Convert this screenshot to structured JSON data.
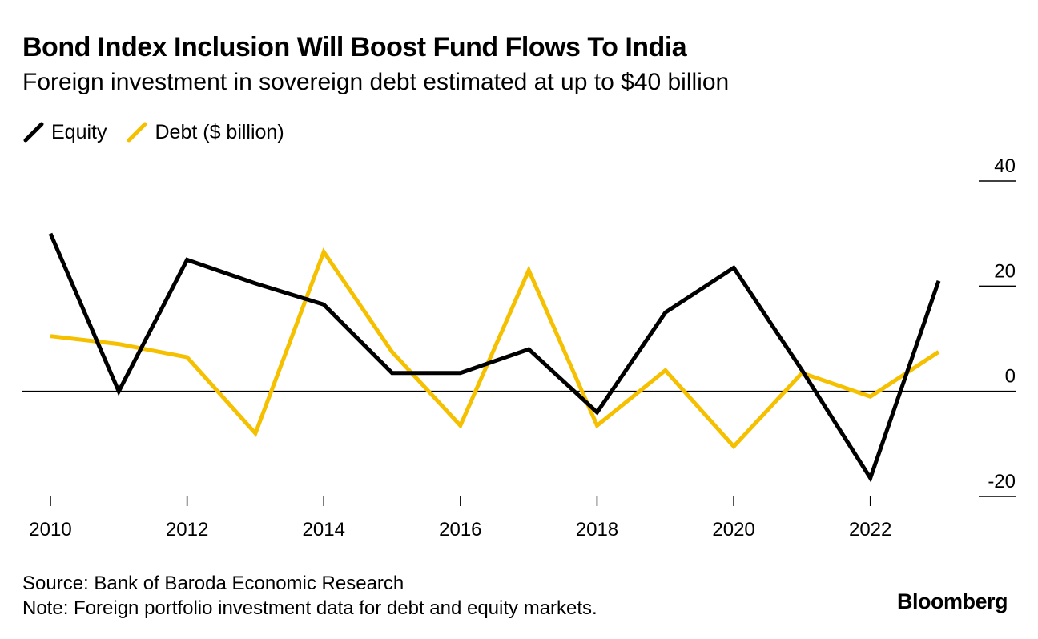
{
  "chart_data": {
    "type": "line",
    "title": "Bond Index Inclusion Will Boost Fund Flows To India",
    "subtitle": "Foreign investment in sovereign debt estimated at up to $40 billion",
    "x": [
      2010,
      2011,
      2012,
      2013,
      2014,
      2015,
      2016,
      2017,
      2018,
      2019,
      2020,
      2021,
      2022,
      2023
    ],
    "series": [
      {
        "name": "Equity",
        "color": "#000000",
        "values": [
          30,
          0,
          25,
          20.5,
          16.5,
          3.5,
          3.5,
          8,
          -4,
          15,
          23.5,
          4,
          -16.5,
          21
        ]
      },
      {
        "name": "Debt ($ billion)",
        "color": "#f5c000",
        "values": [
          10.5,
          9,
          6.5,
          -8,
          26.5,
          7.5,
          -6.5,
          23,
          -6.5,
          4,
          -10.5,
          3.5,
          -1,
          7.5
        ]
      }
    ],
    "x_ticks": [
      "2010",
      "2012",
      "2014",
      "2016",
      "2018",
      "2020",
      "2022"
    ],
    "x_tick_values": [
      2010,
      2012,
      2014,
      2016,
      2018,
      2020,
      2022
    ],
    "y_ticks": [
      "40",
      "20",
      "0",
      "-20"
    ],
    "y_tick_values": [
      40,
      20,
      0,
      -20
    ],
    "ylim": [
      -20,
      40
    ],
    "xlim": [
      2010,
      2023
    ],
    "grid": false,
    "zero_line": true,
    "legend_position": "top-left",
    "y_axis_side": "right",
    "source": "Source: Bank of Baroda Economic Research",
    "note": "Note: Foreign portfolio investment data for debt and equity markets.",
    "brand": "Bloomberg"
  }
}
